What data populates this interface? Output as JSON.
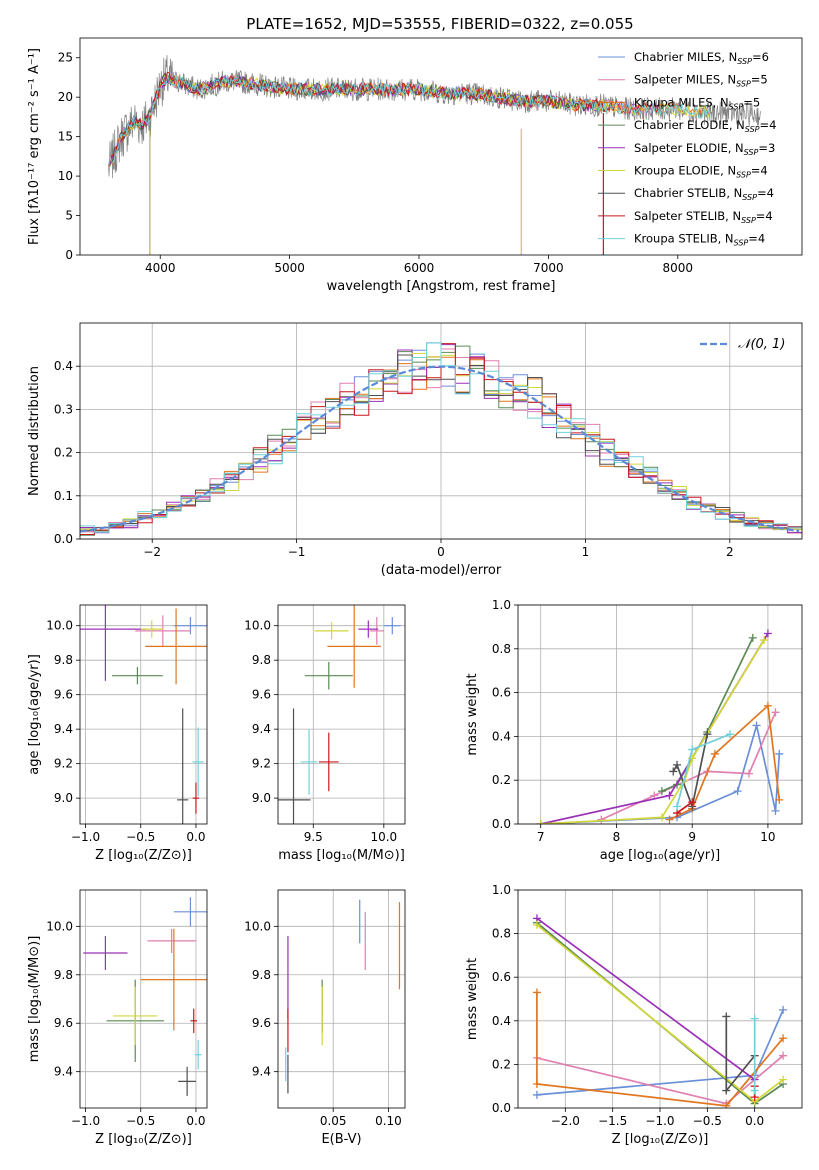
{
  "figure": {
    "title": "PLATE=1652, MJD=53555, FIBERID=0322, z=0.055"
  },
  "colors": [
    "#6a8fd8",
    "#e07fb0",
    "#e0761f",
    "#5a8a55",
    "#9b30b8",
    "#d2d73a",
    "#505050",
    "#c8191e",
    "#6fd0dc"
  ],
  "chart_data": [
    {
      "id": "spectrum",
      "type": "line",
      "title": "PLATE=1652, MJD=53555, FIBERID=0322, z=0.055",
      "xlabel": "wavelength [Angstrom, rest frame]",
      "ylabel": "Flux [fλ10⁻¹⁷ erg cm⁻² s⁻¹ A⁻¹]",
      "xlim": [
        3380,
        8960
      ],
      "ylim": [
        0,
        27.5
      ],
      "xticks": [
        4000,
        5000,
        6000,
        7000,
        8000
      ],
      "yticks": [
        0,
        5,
        10,
        15,
        20,
        25
      ],
      "grid": false,
      "legend": "top-right",
      "data_color": "#808080",
      "series": [
        {
          "name": "Chabrier MILES, N",
          "sub": "SSP",
          "suffix": "=6"
        },
        {
          "name": "Salpeter MILES, N",
          "sub": "SSP",
          "suffix": "=5"
        },
        {
          "name": "Kroupa MILES, N",
          "sub": "SSP",
          "suffix": "=5"
        },
        {
          "name": "Chabrier ELODIE, N",
          "sub": "SSP",
          "suffix": "=4"
        },
        {
          "name": "Salpeter ELODIE, N",
          "sub": "SSP",
          "suffix": "=3"
        },
        {
          "name": "Kroupa ELODIE, N",
          "sub": "SSP",
          "suffix": "=4"
        },
        {
          "name": "Chabrier STELIB, N",
          "sub": "SSP",
          "suffix": "=4"
        },
        {
          "name": "Salpeter STELIB, N",
          "sub": "SSP",
          "suffix": "=4"
        },
        {
          "name": "Kroupa STELIB, N",
          "sub": "SSP",
          "suffix": "=4"
        }
      ],
      "anchors": [
        [
          3600,
          11
        ],
        [
          3650,
          13
        ],
        [
          3700,
          15
        ],
        [
          3750,
          16
        ],
        [
          3800,
          17
        ],
        [
          3850,
          16.5
        ],
        [
          3900,
          17
        ],
        [
          3950,
          19
        ],
        [
          4000,
          21.5
        ],
        [
          4050,
          22.5
        ],
        [
          4100,
          22
        ],
        [
          4150,
          22
        ],
        [
          4200,
          21.5
        ],
        [
          4300,
          21
        ],
        [
          4400,
          21.5
        ],
        [
          4500,
          22
        ],
        [
          4600,
          22
        ],
        [
          4800,
          21.5
        ],
        [
          5000,
          21
        ],
        [
          5200,
          21
        ],
        [
          5400,
          21
        ],
        [
          5600,
          21
        ],
        [
          5800,
          21
        ],
        [
          6000,
          21
        ],
        [
          6200,
          20.5
        ],
        [
          6400,
          20.5
        ],
        [
          6600,
          20
        ],
        [
          6800,
          19.5
        ],
        [
          7000,
          19.5
        ],
        [
          7200,
          19
        ],
        [
          7400,
          19
        ],
        [
          7600,
          18.5
        ],
        [
          7800,
          18.5
        ],
        [
          8000,
          18.5
        ],
        [
          8200,
          18
        ],
        [
          8400,
          18
        ],
        [
          8600,
          17.8
        ]
      ]
    },
    {
      "id": "residuals",
      "type": "line",
      "xlabel": "(data-model)/error",
      "ylabel": "Normed distribution",
      "xlim": [
        -2.5,
        2.5
      ],
      "ylim": [
        0,
        0.5
      ],
      "xticks": [
        -2,
        -1,
        0,
        1,
        2
      ],
      "yticks": [
        0.0,
        0.1,
        0.2,
        0.3,
        0.4
      ],
      "grid": true,
      "legend": "top-right",
      "gaussian_label": "𝒩(0, 1)",
      "gaussian_color": "#5b8ad6",
      "bin_width": 0.1
    },
    {
      "id": "age-vs-z",
      "type": "scatter",
      "xlabel": "Z [log₁₀(Z/Z⊙)]",
      "ylabel": "age  [log₁₀(age/yr)]",
      "xlim": [
        -1.05,
        0.1
      ],
      "ylim": [
        8.85,
        10.12
      ],
      "xticks": [
        -1.0,
        -0.5,
        0.0
      ],
      "yticks": [
        9.0,
        9.2,
        9.4,
        9.6,
        9.8,
        10.0
      ],
      "grid": true,
      "points": [
        {
          "x": -0.05,
          "y": 10.0,
          "xerr": 0.15,
          "yerr": 0.05
        },
        {
          "x": -0.3,
          "y": 9.97,
          "xerr": 0.25,
          "yerr": 0.09
        },
        {
          "x": -0.18,
          "y": 9.88,
          "xerr": 0.28,
          "yerr": 0.22
        },
        {
          "x": -0.53,
          "y": 9.71,
          "xerr": 0.23,
          "yerr": 0.05
        },
        {
          "x": -0.82,
          "y": 9.98,
          "xerr": 0.37,
          "yerr": 0.3
        },
        {
          "x": -0.4,
          "y": 9.98,
          "xerr": 0.1,
          "yerr": 0.05
        },
        {
          "x": -0.12,
          "y": 8.99,
          "xerr": 0.05,
          "yerr": 0.53
        },
        {
          "x": 0.0,
          "y": 9.0,
          "xerr": 0.03,
          "yerr": 0.09
        },
        {
          "x": 0.02,
          "y": 9.21,
          "xerr": 0.05,
          "yerr": 0.2
        }
      ]
    },
    {
      "id": "age-vs-mass",
      "type": "scatter",
      "xlabel": "mass [log₁₀(M/M⊙)]",
      "ylabel": "",
      "xlim": [
        9.25,
        10.15
      ],
      "ylim": [
        8.85,
        10.12
      ],
      "xticks": [
        9.5,
        10.0
      ],
      "yticks": [
        9.0,
        9.2,
        9.4,
        9.6,
        9.8,
        10.0
      ],
      "grid": true,
      "points": [
        {
          "x": 10.06,
          "y": 10.0,
          "xerr": 0.06,
          "yerr": 0.05
        },
        {
          "x": 9.95,
          "y": 9.97,
          "xerr": 0.05,
          "yerr": 0.08
        },
        {
          "x": 9.79,
          "y": 9.88,
          "xerr": 0.19,
          "yerr": 0.24
        },
        {
          "x": 9.61,
          "y": 9.71,
          "xerr": 0.17,
          "yerr": 0.08
        },
        {
          "x": 9.89,
          "y": 9.98,
          "xerr": 0.07,
          "yerr": 0.05
        },
        {
          "x": 9.63,
          "y": 9.97,
          "xerr": 0.12,
          "yerr": 0.05
        },
        {
          "x": 9.36,
          "y": 8.99,
          "xerr": 0.12,
          "yerr": 0.53
        },
        {
          "x": 9.61,
          "y": 9.21,
          "xerr": 0.07,
          "yerr": 0.17
        },
        {
          "x": 9.47,
          "y": 9.21,
          "xerr": 0.06,
          "yerr": 0.19
        }
      ]
    },
    {
      "id": "mass-weight-vs-age",
      "type": "line",
      "xlabel": "age  [log₁₀(age/yr)]",
      "ylabel": "mass weight",
      "xlim": [
        6.7,
        10.45
      ],
      "ylim": [
        0,
        1
      ],
      "xticks": [
        7,
        8,
        9,
        10
      ],
      "yticks": [
        0.0,
        0.2,
        0.4,
        0.6,
        0.8,
        1.0
      ],
      "grid": true,
      "series": [
        {
          "points": [
            [
              7.0,
              0.0
            ],
            [
              8.8,
              0.03
            ],
            [
              9.6,
              0.15
            ],
            [
              9.85,
              0.45
            ],
            [
              10.1,
              0.06
            ],
            [
              10.15,
              0.32
            ]
          ]
        },
        {
          "points": [
            [
              7.8,
              0.02
            ],
            [
              8.5,
              0.13
            ],
            [
              9.2,
              0.24
            ],
            [
              9.75,
              0.23
            ],
            [
              10.1,
              0.51
            ]
          ]
        },
        {
          "points": [
            [
              8.7,
              0.02
            ],
            [
              9.0,
              0.07
            ],
            [
              9.3,
              0.32
            ],
            [
              10.0,
              0.54
            ],
            [
              10.15,
              0.11
            ]
          ]
        },
        {
          "points": [
            [
              8.6,
              0.15
            ],
            [
              8.8,
              0.18
            ],
            [
              9.2,
              0.42
            ],
            [
              9.8,
              0.85
            ]
          ]
        },
        {
          "points": [
            [
              7.0,
              0.0
            ],
            [
              8.7,
              0.13
            ],
            [
              10.0,
              0.87
            ]
          ]
        },
        {
          "points": [
            [
              7.0,
              0.0
            ],
            [
              8.6,
              0.03
            ],
            [
              8.9,
              0.2
            ],
            [
              9.0,
              0.3
            ],
            [
              9.95,
              0.84
            ]
          ]
        },
        {
          "points": [
            [
              8.75,
              0.24
            ],
            [
              8.8,
              0.27
            ],
            [
              9.0,
              0.08
            ],
            [
              9.2,
              0.41
            ]
          ]
        },
        {
          "points": [
            [
              8.8,
              0.05
            ],
            [
              9.0,
              0.1
            ]
          ]
        },
        {
          "points": [
            [
              8.8,
              0.08
            ],
            [
              9.0,
              0.34
            ],
            [
              9.5,
              0.41
            ]
          ]
        }
      ]
    },
    {
      "id": "mass-vs-z",
      "type": "scatter",
      "xlabel": "Z [log₁₀(Z/Z⊙)]",
      "ylabel": "mass [log₁₀(M/M⊙)]",
      "xlim": [
        -1.05,
        0.1
      ],
      "ylim": [
        9.25,
        10.15
      ],
      "xticks": [
        -1.0,
        -0.5,
        0.0
      ],
      "yticks": [
        9.4,
        9.6,
        9.8,
        10.0
      ],
      "grid": true,
      "points": [
        {
          "x": -0.05,
          "y": 10.06,
          "xerr": 0.15,
          "yerr": 0.06
        },
        {
          "x": -0.22,
          "y": 9.94,
          "xerr": 0.22,
          "yerr": 0.05
        },
        {
          "x": -0.2,
          "y": 9.78,
          "xerr": 0.3,
          "yerr": 0.21
        },
        {
          "x": -0.55,
          "y": 9.61,
          "xerr": 0.26,
          "yerr": 0.17
        },
        {
          "x": -0.82,
          "y": 9.89,
          "xerr": 0.2,
          "yerr": 0.07
        },
        {
          "x": -0.55,
          "y": 9.63,
          "xerr": 0.2,
          "yerr": 0.12
        },
        {
          "x": -0.08,
          "y": 9.36,
          "xerr": 0.08,
          "yerr": 0.06
        },
        {
          "x": -0.02,
          "y": 9.61,
          "xerr": 0.03,
          "yerr": 0.05
        },
        {
          "x": 0.02,
          "y": 9.47,
          "xerr": 0.03,
          "yerr": 0.06
        }
      ]
    },
    {
      "id": "mass-vs-ebv",
      "type": "scatter",
      "xlabel": "E(B-V)",
      "ylabel": "",
      "xlim": [
        0.0,
        0.115
      ],
      "ylim": [
        9.25,
        10.15
      ],
      "xticks": [
        0.05,
        0.1
      ],
      "xtick_labels": [
        "0.05",
        "0.10"
      ],
      "yticks": [
        9.4,
        9.6,
        9.8,
        10.0
      ],
      "grid": true,
      "points": [
        {
          "x": 0.074,
          "y": 10.02,
          "xerr": 0,
          "yerr": 0.09
        },
        {
          "x": 0.079,
          "y": 9.94,
          "xerr": 0,
          "yerr": 0.12
        },
        {
          "x": 0.11,
          "y": 9.92,
          "xerr": 0,
          "yerr": 0.18
        },
        {
          "x": 0.04,
          "y": 9.67,
          "xerr": 0,
          "yerr": 0.11
        },
        {
          "x": 0.009,
          "y": 9.79,
          "xerr": 0,
          "yerr": 0.17
        },
        {
          "x": 0.04,
          "y": 9.63,
          "xerr": 0,
          "yerr": 0.12
        },
        {
          "x": 0.009,
          "y": 9.39,
          "xerr": 0,
          "yerr": 0.08
        },
        {
          "x": 0.009,
          "y": 9.57,
          "xerr": 0,
          "yerr": 0.09
        },
        {
          "x": 0.007,
          "y": 9.43,
          "xerr": 0,
          "yerr": 0.07
        }
      ]
    },
    {
      "id": "mass-weight-vs-z",
      "type": "line",
      "xlabel": "Z [log₁₀(Z/Z⊙)]",
      "ylabel": "mass weight",
      "xlim": [
        -2.5,
        0.5
      ],
      "ylim": [
        0,
        1
      ],
      "xticks": [
        -2.0,
        -1.5,
        -1.0,
        -0.5,
        0.0
      ],
      "yticks": [
        0.0,
        0.2,
        0.4,
        0.6,
        0.8,
        1.0
      ],
      "grid": true,
      "series": [
        {
          "points": [
            [
              -2.3,
              0.06
            ],
            [
              0.0,
              0.15
            ],
            [
              0.3,
              0.45
            ]
          ]
        },
        {
          "points": [
            [
              -2.3,
              0.23
            ],
            [
              -0.3,
              0.02
            ],
            [
              0.3,
              0.24
            ]
          ]
        },
        {
          "points": [
            [
              -2.3,
              0.53
            ],
            [
              -2.3,
              0.11
            ],
            [
              -0.3,
              0.01
            ],
            [
              0.3,
              0.32
            ]
          ]
        },
        {
          "points": [
            [
              -2.3,
              0.85
            ],
            [
              0.0,
              0.02
            ],
            [
              0.3,
              0.11
            ]
          ]
        },
        {
          "points": [
            [
              -2.3,
              0.87
            ],
            [
              0.0,
              0.13
            ]
          ]
        },
        {
          "points": [
            [
              -2.3,
              0.84
            ],
            [
              0.0,
              0.03
            ],
            [
              0.3,
              0.13
            ]
          ]
        },
        {
          "points": [
            [
              -0.3,
              0.42
            ],
            [
              -0.3,
              0.08
            ],
            [
              0.0,
              0.24
            ]
          ]
        },
        {
          "points": [
            [
              0.0,
              0.05
            ],
            [
              0.0,
              0.1
            ]
          ]
        },
        {
          "points": [
            [
              0.0,
              0.41
            ],
            [
              0.0,
              0.08
            ]
          ]
        }
      ]
    }
  ]
}
